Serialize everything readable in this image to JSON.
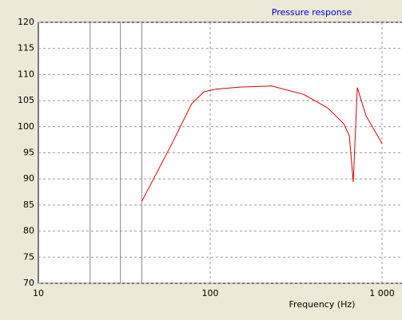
{
  "chart_data": {
    "type": "line",
    "title": "Pressure response",
    "x_label": "Frequency (Hz)",
    "x": [
      40,
      60,
      78,
      92,
      108,
      149,
      228,
      350,
      483,
      598,
      645,
      680,
      718,
      807,
      1000
    ],
    "series": [
      {
        "name": "Pressure response",
        "color": "#d40000",
        "values": [
          85.7,
          96.8,
          104.4,
          106.7,
          107.2,
          107.6,
          107.8,
          106.2,
          103.6,
          100.6,
          98.3,
          89.4,
          107.5,
          102.1,
          96.8
        ]
      }
    ],
    "xscale": "log",
    "xlim": [
      10,
      1300
    ],
    "xticks": [
      10,
      100,
      {
        "value": 1000,
        "label": "1 000"
      }
    ],
    "ylim": [
      70,
      120
    ],
    "yticks": [
      70,
      75,
      80,
      85,
      90,
      95,
      100,
      105,
      110,
      115,
      120
    ],
    "markers": [
      20,
      30,
      40
    ],
    "grid": true
  }
}
